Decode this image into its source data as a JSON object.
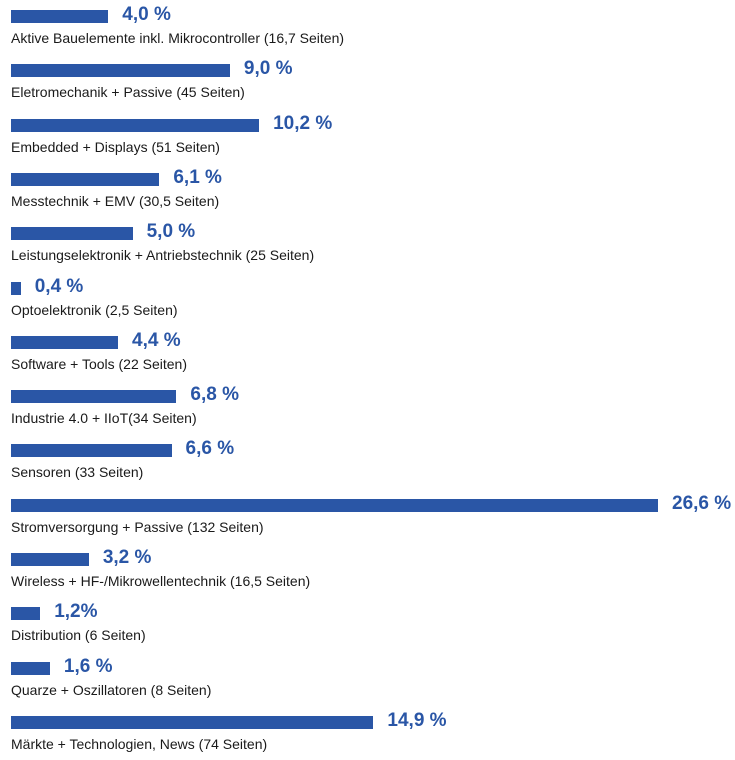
{
  "colors": {
    "bar": "#2a56a6",
    "value_text": "#2a56a6"
  },
  "chart_data": {
    "type": "bar",
    "orientation": "horizontal",
    "categories": [
      "Aktive Bauelemente inkl. Mikrocontroller (16,7 Seiten)",
      "Eletromechanik + Passive (45 Seiten)",
      "Embedded + Displays (51 Seiten)",
      "Messtechnik + EMV (30,5 Seiten)",
      "Leistungselektronik + Antriebstechnik (25 Seiten)",
      "Optoelektronik (2,5 Seiten)",
      "Software + Tools (22 Seiten)",
      "Industrie 4.0 + IIoT(34 Seiten)",
      "Sensoren (33 Seiten)",
      "Stromversorgung + Passive (132 Seiten)",
      "Wireless + HF-/Mikrowellentechnik (16,5 Seiten)",
      "Distribution (6 Seiten)",
      "Quarze + Oszillatoren (8 Seiten)",
      "Märkte + Technologien, News (74 Seiten)"
    ],
    "values": [
      4.0,
      9.0,
      10.2,
      6.1,
      5.0,
      0.4,
      4.4,
      6.8,
      6.6,
      26.6,
      3.2,
      1.2,
      1.6,
      14.9
    ],
    "value_labels": [
      "4,0 %",
      "9,0 %",
      "10,2 %",
      "6,1 %",
      "5,0 %",
      "0,4 %",
      "4,4 %",
      "6,8 %",
      "6,6 %",
      "26,6 %",
      "3,2 %",
      "1,2%",
      "1,6 %",
      "14,9 %"
    ],
    "unit": "%",
    "xlim": [
      0,
      26.6
    ],
    "grid": false,
    "legend": "none"
  }
}
